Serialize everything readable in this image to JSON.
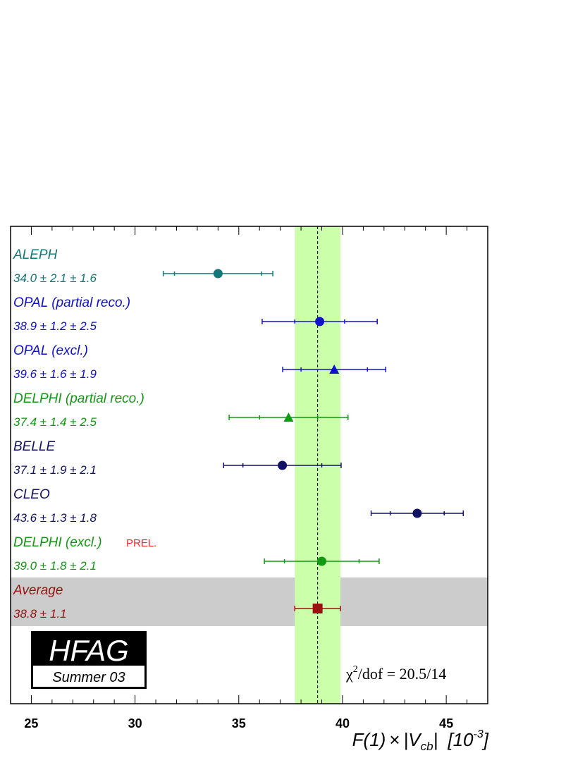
{
  "chart_data": {
    "type": "scatter",
    "xlim": [
      24,
      47
    ],
    "x_ticks": [
      25,
      30,
      35,
      40,
      45
    ],
    "x_tick_labels": [
      "25",
      "30",
      "35",
      "40",
      "45"
    ],
    "xlabel": {
      "pre": "F(1)",
      "times": "×",
      "abs_open": "|V",
      "subscript": "cb",
      "abs_close": "|",
      "unit_open": "[10",
      "superscript": "-3",
      "unit_close": "]"
    },
    "average_band": {
      "low": 37.7,
      "high": 39.9,
      "center": 38.8,
      "color": "#ccffaa"
    },
    "measurements": [
      {
        "label": "ALEPH",
        "value_text": "34.0 ±  2.1 ±  1.6",
        "value": 34.0,
        "stat": 2.1,
        "syst": 1.6,
        "marker": "circle",
        "color": "#117777",
        "prel": ""
      },
      {
        "label": "OPAL (partial reco.)",
        "value_text": "38.9 ±  1.2 ±  2.5",
        "value": 38.9,
        "stat": 1.2,
        "syst": 2.5,
        "marker": "circle",
        "color": "#1111cc",
        "prel": ""
      },
      {
        "label": "OPAL (excl.)",
        "value_text": "39.6 ±  1.6 ±  1.9",
        "value": 39.6,
        "stat": 1.6,
        "syst": 1.9,
        "marker": "triangle",
        "color": "#1111cc",
        "prel": ""
      },
      {
        "label": "DELPHI (partial reco.)",
        "value_text": "37.4 ±  1.4 ±  2.5",
        "value": 37.4,
        "stat": 1.4,
        "syst": 2.5,
        "marker": "triangle",
        "color": "#119911",
        "prel": ""
      },
      {
        "label": "BELLE",
        "value_text": "37.1 ±  1.9 ±  2.1",
        "value": 37.1,
        "stat": 1.9,
        "syst": 2.1,
        "marker": "circle",
        "color": "#111166",
        "prel": ""
      },
      {
        "label": "CLEO",
        "value_text": "43.6 ±  1.3 ±  1.8",
        "value": 43.6,
        "stat": 1.3,
        "syst": 1.8,
        "marker": "circle",
        "color": "#111166",
        "prel": ""
      },
      {
        "label": "DELPHI (excl.)",
        "value_text": "39.0 ±  1.8 ±  2.1",
        "value": 39.0,
        "stat": 1.8,
        "syst": 2.1,
        "marker": "circle",
        "color": "#119911",
        "prel": "PREL."
      }
    ],
    "average": {
      "label": "Average",
      "value_text": "38.8 ±  1.1",
      "value": 38.8,
      "err": 1.1,
      "marker": "square",
      "color": "#991111",
      "shade_color": "#cccccc"
    },
    "chi2": {
      "symbol": "χ",
      "power": "2",
      "text": "/dof = 20.5/14"
    },
    "logo": {
      "main": "HFAG",
      "sub": "Summer 03"
    },
    "prel_color": "#ff2222"
  }
}
